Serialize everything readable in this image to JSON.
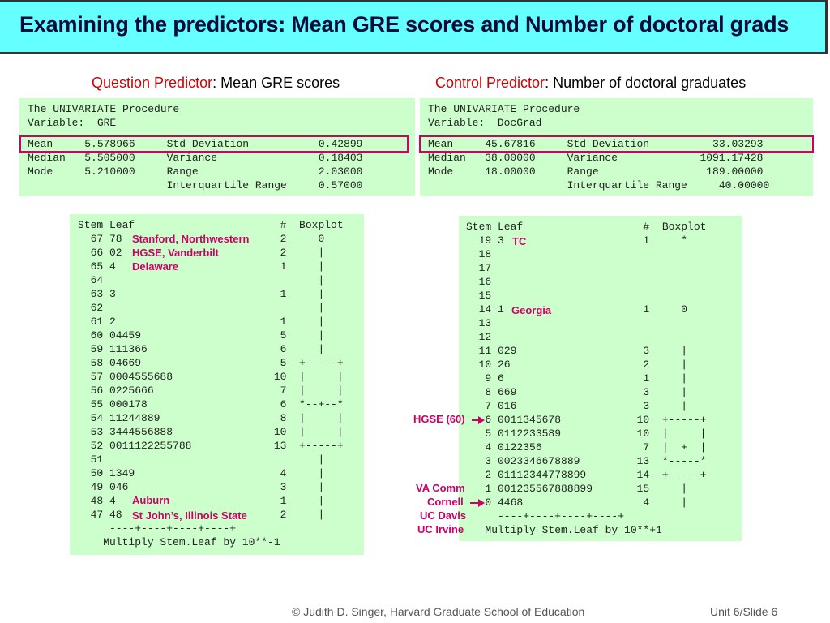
{
  "title": "Examining the predictors: Mean GRE scores and Number of doctoral grads",
  "left_header": {
    "accent": "Question Predictor",
    "rest": ": Mean GRE scores"
  },
  "right_header": {
    "accent": "Control Predictor",
    "rest": ":  Number of doctoral graduates"
  },
  "gre_univariate": {
    "lines": [
      "The UNIVARIATE Procedure",
      "Variable:  GRE",
      "Mean     5.578966     Std Deviation           0.42899",
      "Median   5.505000     Variance                0.18403",
      "Mode     5.210000     Range                   2.03000",
      "                      Interquartile Range     0.57000"
    ]
  },
  "doc_univariate": {
    "lines": [
      "The UNIVARIATE Procedure",
      "Variable:  DocGrad",
      "Mean     45.67816     Std Deviation          33.03293",
      "Median   38.00000     Variance             1091.17428",
      "Mode     18.00000     Range                 189.00000",
      "                      Interquartile Range     40.00000"
    ]
  },
  "gre_stemleaf": {
    "lines": [
      "Stem Leaf                       #  Boxplot",
      "  67 78                         2     0",
      "  66 02                         2     |",
      "  65 4                          1     |",
      "  64                                  |",
      "  63 3                          1     |",
      "  62                                  |",
      "  61 2                          1     |",
      "  60 04459                      5     |",
      "  59 111366                     6     |",
      "  58 04669                      5  +-----+",
      "  57 0004555688                10  |     |",
      "  56 0225666                    7  |     |",
      "  55 000178                     6  *--+--*",
      "  54 11244889                   8  |     |",
      "  53 3444556888                10  |     |",
      "  52 0011122255788             13  +-----+",
      "  51                                  |",
      "  50 1349                       4     |",
      "  49 046                        3     |",
      "  48 4                          1     |",
      "  47 48                         2     |",
      "     ----+----+----+----+",
      "    Multiply Stem.Leaf by 10**-1"
    ],
    "annotations": [
      "Stanford, Northwestern",
      "HGSE, Vanderbilt",
      "Delaware",
      "Auburn",
      "St John’s, Illinois State"
    ]
  },
  "doc_stemleaf": {
    "lines": [
      "Stem Leaf                   #  Boxplot",
      "  19 3                      1     *",
      "  18",
      "  17",
      "  16",
      "  15",
      "  14 1                      1     0",
      "  13",
      "  12",
      "  11 029                    3     |",
      "  10 26                     2     |",
      "   9 6                      1     |",
      "   8 669                    3     |",
      "   7 016                    3     |",
      "   6 0011345678            10  +-----+",
      "   5 0112233589            10  |     |",
      "   4 0122356                7  |  +  |",
      "   3 0023346678889         13  *-----*",
      "   2 01112344778899        14  +-----+",
      "   1 001235567888899       15     |",
      "   0 4468                   4     |",
      "     ----+----+----+----+",
      "   Multiply Stem.Leaf by 10**+1"
    ],
    "annotations": [
      "TC",
      "Georgia"
    ],
    "side_labels": [
      "HGSE (60)",
      "VA Comm",
      "Cornell",
      "UC Davis",
      "UC Irvine"
    ]
  },
  "footer": {
    "credit": "© Judith D. Singer, Harvard Graduate School of Education",
    "slide": "Unit 6/Slide 6"
  }
}
